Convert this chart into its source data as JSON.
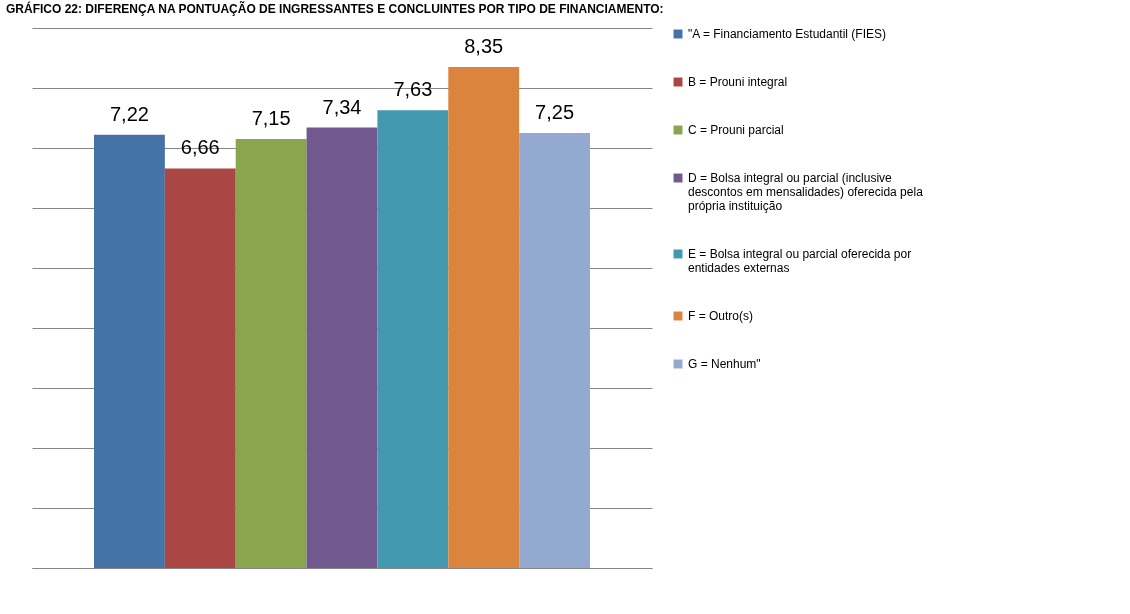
{
  "chart_data": {
    "type": "bar",
    "title": "GRÁFICO 22: DIFERENÇA NA PONTUAÇÃO DE INGRESSANTES E CONCLUINTES POR TIPO DE FINANCIAMENTO:",
    "categories": [
      null
    ],
    "series": [
      {
        "name": "\"A = Financiamento Estudantil (FIES)",
        "color": "#4572a7",
        "values": [
          7.22
        ],
        "value_labels": [
          "7,22"
        ]
      },
      {
        "name": "B = Prouni integral",
        "color": "#aa4643",
        "values": [
          6.66
        ],
        "value_labels": [
          "6,66"
        ]
      },
      {
        "name": "C = Prouni parcial",
        "color": "#89a54e",
        "values": [
          7.15
        ],
        "value_labels": [
          "7,15"
        ]
      },
      {
        "name": "D = Bolsa integral ou parcial (inclusive descontos em mensalidades) oferecida pela própria instituição",
        "color": "#71588f",
        "values": [
          7.34
        ],
        "value_labels": [
          "7,34"
        ]
      },
      {
        "name": "E = Bolsa integral ou parcial oferecida por entidades externas",
        "color": "#4198af",
        "values": [
          7.63
        ],
        "value_labels": [
          "7,63"
        ]
      },
      {
        "name": "F = Outro(s)",
        "color": "#db843d",
        "values": [
          8.35
        ],
        "value_labels": [
          "8,35"
        ]
      },
      {
        "name": "G = Nenhum\"",
        "color": "#93a9cf",
        "values": [
          7.25
        ],
        "value_labels": [
          "7,25"
        ]
      }
    ],
    "ylim": [
      0,
      9
    ],
    "yticks": [
      {
        "value": 0,
        "label": null
      },
      {
        "value": 1,
        "label": null
      },
      {
        "value": 2,
        "label": null
      },
      {
        "value": 3,
        "label": null
      },
      {
        "value": 4,
        "label": null
      },
      {
        "value": 5,
        "label": null
      },
      {
        "value": 6,
        "label": null
      },
      {
        "value": 7,
        "label": null
      },
      {
        "value": 8,
        "label": null
      },
      {
        "value": 9,
        "label": null
      }
    ],
    "grid": "y",
    "legend": "right"
  }
}
